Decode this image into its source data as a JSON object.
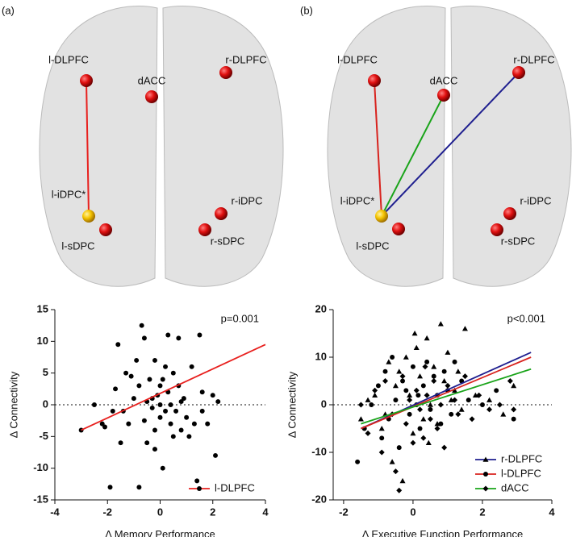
{
  "panels": [
    {
      "label": "(a)",
      "nodes": [
        "l-DLPFC",
        "dACC",
        "r-DLPFC",
        "l-iDPC*",
        "l-sDPC",
        "r-iDPC",
        "r-sDPC"
      ]
    },
    {
      "label": "(b)",
      "nodes": [
        "l-DLPFC",
        "dACC",
        "r-DLPFC",
        "l-iDPC*",
        "l-sDPC",
        "r-iDPC",
        "r-sDPC"
      ]
    }
  ],
  "chart_data": [
    {
      "type": "scatter",
      "y_label": "Δ Connectivity",
      "x_label": "Δ Memory Performance",
      "annotation": "p=0.001",
      "xlim": [
        -4,
        4
      ],
      "xticks": [
        -4,
        -2,
        0,
        2,
        4
      ],
      "ylim": [
        -15,
        15
      ],
      "yticks": [
        -15,
        -10,
        -5,
        0,
        5,
        10,
        15
      ],
      "reference_y": 0,
      "point_color": "#000000",
      "legend": "lower right",
      "series": [
        {
          "name": "l-DLPFC",
          "color": "#e8201e",
          "marker": "circle",
          "x": [
            -3,
            -2.2,
            -2.1,
            -1.9,
            -1.8,
            -1.6,
            -1.5,
            -1.4,
            -1.3,
            -1.2,
            -1.1,
            -1,
            -0.9,
            -0.8,
            -0.8,
            -0.7,
            -0.6,
            -0.6,
            -0.5,
            -0.5,
            -0.4,
            -0.3,
            -0.3,
            -0.2,
            -0.2,
            -0.1,
            0,
            0,
            0,
            0.1,
            0.1,
            0.2,
            0.2,
            0.3,
            0.3,
            0.4,
            0.4,
            0.5,
            0.5,
            0.6,
            0.7,
            0.7,
            0.8,
            0.9,
            1,
            1.1,
            1.2,
            1.3,
            1.4,
            1.5,
            1.6,
            1.8,
            2,
            2.1,
            2.2,
            -2.5,
            -1.7,
            0.8,
            -0.2,
            1.6
          ],
          "values": [
            -4,
            -3,
            -3.5,
            -13,
            -1,
            9.5,
            -6,
            -1,
            5,
            -3,
            4.5,
            1,
            7,
            3,
            -13,
            12.5,
            10.5,
            -2.5,
            0.5,
            -6,
            4,
            -0.5,
            1,
            7,
            -4,
            1.5,
            0,
            3,
            -2,
            4,
            -10,
            6,
            -1,
            11,
            2,
            0,
            -3,
            5,
            -5,
            -1,
            10.5,
            3,
            -4,
            1,
            -2,
            -5,
            6,
            -3,
            -12,
            11,
            -1,
            -3,
            1.5,
            -8,
            0.5,
            0,
            2.5,
            0.5,
            -7,
            2
          ],
          "fit_x": [
            -3,
            4
          ],
          "fit_values": [
            -4,
            9.5
          ]
        }
      ]
    },
    {
      "type": "scatter",
      "y_label": "Δ Connectivity",
      "x_label": "Δ Executive Function Performance",
      "annotation": "p<0.001",
      "xlim": [
        -2.3,
        4
      ],
      "xticks": [
        -2,
        0,
        2,
        4
      ],
      "ylim": [
        -20,
        20
      ],
      "yticks": [
        -20,
        -10,
        0,
        10,
        20
      ],
      "reference_y": 0,
      "point_color": "#000000",
      "legend": "lower right",
      "series": [
        {
          "name": "r-DLPFC",
          "color": "#1f1f8f",
          "marker": "triangle",
          "x": [
            -1.5,
            -1.3,
            -1.1,
            -0.9,
            -0.7,
            -0.6,
            -0.5,
            -0.4,
            -0.3,
            -0.2,
            -0.1,
            0,
            0.1,
            0.2,
            0.3,
            0.4,
            0.5,
            0.6,
            0.7,
            0.8,
            0.9,
            1,
            1.1,
            1.2,
            1.3,
            1.4,
            1.5,
            1.8,
            2.2,
            2.6,
            2.9,
            -0.8,
            0.05,
            0.45
          ],
          "values": [
            -3,
            1,
            2,
            -5,
            9,
            -12,
            4,
            7,
            -16,
            10,
            2,
            -6,
            12,
            6,
            -3,
            14,
            0,
            8,
            -4,
            17,
            5,
            11,
            1,
            3,
            7,
            -1,
            16,
            2,
            1,
            -2,
            4,
            -2,
            15,
            -8
          ],
          "fit_x": [
            -1.5,
            3.4
          ],
          "fit_values": [
            -5,
            11
          ]
        },
        {
          "name": "l-DLPFC",
          "color": "#d8231e",
          "marker": "circle",
          "x": [
            -1.6,
            -1.4,
            -1.2,
            -1,
            -0.8,
            -0.7,
            -0.6,
            -0.5,
            -0.4,
            -0.3,
            -0.2,
            -0.1,
            0,
            0.1,
            0.2,
            0.3,
            0.4,
            0.5,
            0.6,
            0.7,
            0.8,
            0.9,
            1,
            1.1,
            1.2,
            1.4,
            1.6,
            2,
            2.4,
            2.9,
            -0.9,
            0.15
          ],
          "values": [
            -12,
            -5,
            0,
            4,
            7,
            -3,
            10,
            1,
            -9,
            5,
            3,
            -2,
            8,
            0,
            -5,
            4,
            9,
            -1,
            6,
            2,
            -4,
            7,
            3,
            -2,
            9,
            5,
            1,
            0,
            3,
            -3,
            -7,
            2
          ],
          "fit_x": [
            -1.5,
            3.4
          ],
          "fit_values": [
            -5,
            10
          ]
        },
        {
          "name": "dACC",
          "color": "#1aa41a",
          "marker": "diamond",
          "x": [
            -1.5,
            -1.3,
            -1.1,
            -0.9,
            -0.8,
            -0.6,
            -0.5,
            -0.3,
            -0.2,
            -0.1,
            0,
            0.1,
            0.2,
            0.3,
            0.4,
            0.5,
            0.6,
            0.7,
            0.8,
            0.9,
            1,
            1.2,
            1.3,
            1.5,
            1.7,
            1.9,
            2.2,
            2.5,
            2.8,
            2.9,
            -0.4,
            0.35
          ],
          "values": [
            0,
            -6,
            3,
            -10,
            5,
            -2,
            -14,
            6,
            -4,
            1,
            -8,
            3,
            -1,
            -7,
            2,
            -3,
            5,
            -5,
            0,
            -9,
            4,
            1,
            -2,
            6,
            -3,
            2,
            -1,
            0,
            5,
            -1,
            -18,
            8
          ],
          "fit_x": [
            -1.5,
            3.4
          ],
          "fit_values": [
            -4,
            7.5
          ]
        }
      ]
    }
  ]
}
